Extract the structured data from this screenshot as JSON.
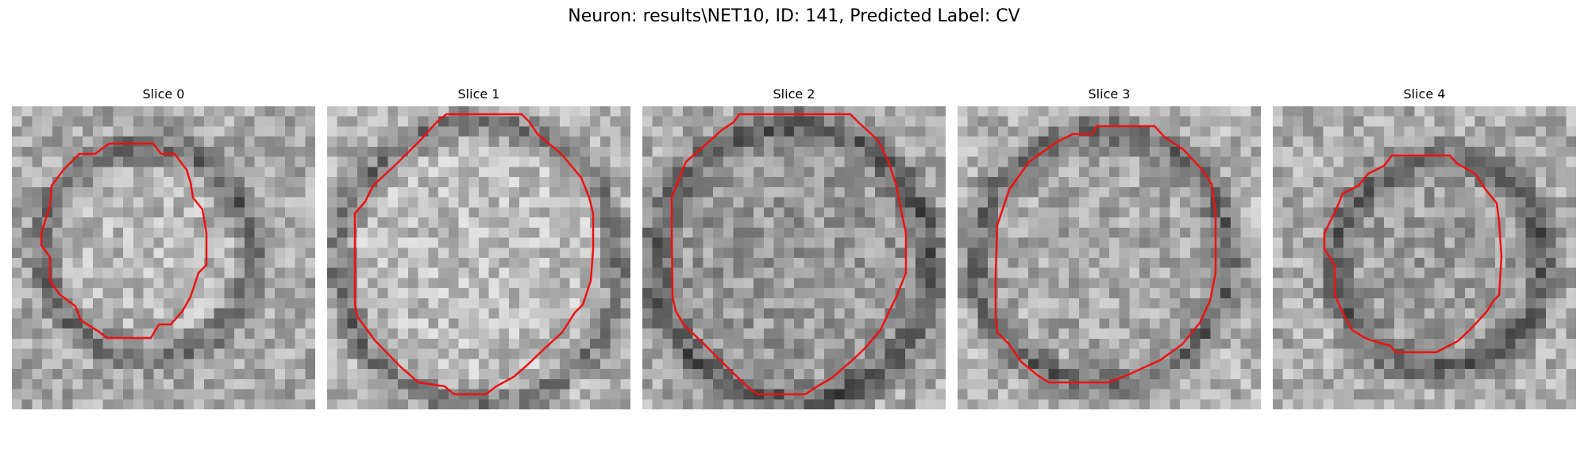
{
  "figure": {
    "title": "Neuron: results\\NET10, ID: 141, Predicted Label: CV"
  },
  "slices": [
    {
      "label": "Slice 0",
      "contour_color": "#ee1111"
    },
    {
      "label": "Slice 1",
      "contour_color": "#ee1111"
    },
    {
      "label": "Slice 2",
      "contour_color": "#ee1111"
    },
    {
      "label": "Slice 3",
      "contour_color": "#ee1111"
    },
    {
      "label": "Slice 4",
      "contour_color": "#ee1111"
    }
  ]
}
